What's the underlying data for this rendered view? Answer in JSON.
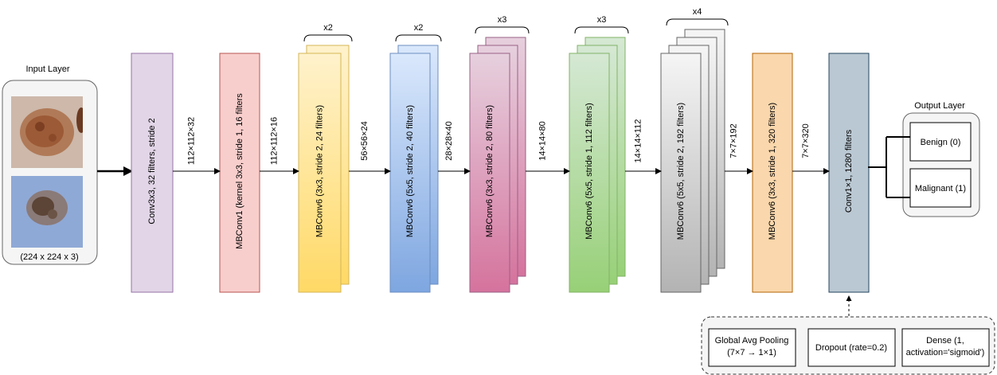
{
  "input": {
    "title": "Input Layer",
    "caption": "(224 x 224 x 3)"
  },
  "blocks": [
    {
      "label": "Conv3x3, 32 filters, stride 2",
      "repeat": "",
      "layers": 1,
      "fill": "#e1d5e7",
      "stroke": "#9673a6"
    },
    {
      "label": "MBConv1 (kernel 3x3, stride 1, 16 filters",
      "repeat": "",
      "layers": 1,
      "fill": "#f8cecc",
      "stroke": "#b85450"
    },
    {
      "label": "MBConv6 (3x3, stride 2, 24 filters)",
      "repeat": "x2",
      "layers": 2,
      "fill": "#fff2cc",
      "fill2": "#ffd966",
      "stroke": "#d6b656"
    },
    {
      "label": "MBConv6 (5x5, stride 2, 40 filters)",
      "repeat": "x2",
      "layers": 2,
      "fill": "#dae8fc",
      "fill2": "#7ea6e0",
      "stroke": "#6c8ebf"
    },
    {
      "label": "MBConv6 (3x3, stride 2, 80 filters)",
      "repeat": "x3",
      "layers": 3,
      "fill": "#e6d0de",
      "fill2": "#d5739d",
      "stroke": "#996185"
    },
    {
      "label": "MBConv6 (5x5, stride 1, 112 filters)",
      "repeat": "x3",
      "layers": 3,
      "fill": "#d5e8d4",
      "fill2": "#97d077",
      "stroke": "#82b366"
    },
    {
      "label": "MBConv6 (5x5, stride 2, 192 filters)",
      "repeat": "x4",
      "layers": 4,
      "fill": "#f5f5f5",
      "fill2": "#b3b3b3",
      "stroke": "#666666"
    },
    {
      "label": "MBConv6 (3x3, stride 1, 320 filters)",
      "repeat": "",
      "layers": 1,
      "fill": "#fad7ac",
      "stroke": "#b46504"
    },
    {
      "label": "Conv1×1, 1280 filters",
      "repeat": "",
      "layers": 1,
      "fill": "#bac8d3",
      "stroke": "#23445d"
    }
  ],
  "dims": [
    "112×112×32",
    "112×112×16",
    "56×56×24",
    "28×28×40",
    "14×14×80",
    "14×14×112",
    "7×7×192",
    "7×7×320"
  ],
  "output": {
    "title": "Output Layer",
    "classes": [
      "Benign (0)",
      "Malignant (1)"
    ]
  },
  "head": [
    {
      "lines": [
        "Global Avg Pooling",
        "(7×7 → 1×1)"
      ]
    },
    {
      "lines": [
        "Dropout (rate=0.2)"
      ]
    },
    {
      "lines": [
        "Dense (1,",
        "activation='sigmoid')"
      ]
    }
  ]
}
